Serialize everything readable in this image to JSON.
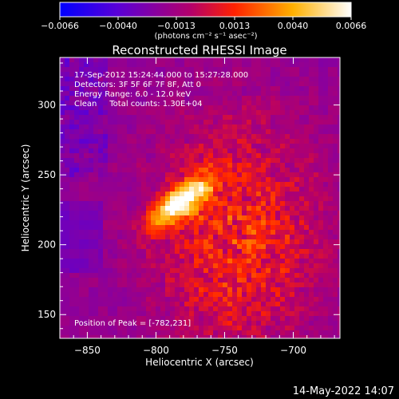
{
  "chart_data": {
    "type": "heatmap",
    "title": "Reconstructed RHESSI Image",
    "xlabel": "Heliocentric X (arcsec)",
    "ylabel": "Heliocentric Y (arcsec)",
    "xlim": [
      -870,
      -666
    ],
    "ylim": [
      133,
      334
    ],
    "x_ticks": [
      -850,
      -800,
      -750,
      -700
    ],
    "y_ticks": [
      150,
      200,
      250,
      300
    ],
    "x_tick_labels": [
      "−850",
      "−800",
      "−750",
      "−700"
    ],
    "y_tick_labels": [
      "150",
      "200",
      "250",
      "300"
    ],
    "colorbar": {
      "range": [
        -0.0066,
        0.0066
      ],
      "ticks": [
        "−0.0066",
        "−0.0040",
        "−0.0013",
        "0.0013",
        "0.0040",
        "0.0066"
      ],
      "unit_label": "(photons cm⁻² s⁻¹ asec⁻²)",
      "colors": [
        "#0000ff",
        "#5a00d6",
        "#b4006a",
        "#ff2200",
        "#ffb000",
        "#ffffff"
      ]
    },
    "annotations": [
      "17-Sep-2012 15:24:44.000 to 15:27:28.000",
      "Detectors: 3F 5F 6F 7F 8F, Att 0",
      "Energy Range: 6.0 - 12.0 keV",
      "Clean     Total counts: 1.30E+04"
    ],
    "peak_label": "Position of Peak = [-782,231]",
    "peak": {
      "x": -782,
      "y": 231
    },
    "timestamp": "14-May-2022 14:07"
  }
}
